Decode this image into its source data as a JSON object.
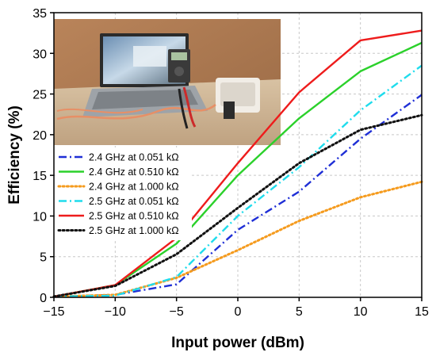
{
  "chart_data": {
    "type": "line",
    "title": "",
    "xlabel": "Input power (dBm)",
    "ylabel": "Efficiency (%)",
    "xlim": [
      -15,
      15
    ],
    "ylim": [
      0,
      35
    ],
    "xticks": [
      "−15",
      "−10",
      "−5",
      "0",
      "5",
      "10",
      "15"
    ],
    "xtick_values": [
      -15,
      -10,
      -5,
      0,
      5,
      10,
      15
    ],
    "yticks": [
      "0",
      "5",
      "10",
      "15",
      "20",
      "25",
      "30",
      "35"
    ],
    "ytick_values": [
      0,
      5,
      10,
      15,
      20,
      25,
      30,
      35
    ],
    "grid": "dashed",
    "legend_position": "left-middle",
    "inset_photo": "measurement setup: laptop, multimeter and rectifier board",
    "x": [
      -15,
      -10,
      -5,
      0,
      5,
      10,
      15
    ],
    "series": [
      {
        "name": "2.4 GHz at 0.051 kΩ",
        "color": "#1f2fd6",
        "style": "dashdot",
        "values": [
          0.1,
          0.3,
          1.6,
          8.3,
          13.0,
          19.5,
          24.9
        ]
      },
      {
        "name": "2.4 GHz at 0.510 kΩ",
        "color": "#2bd12b",
        "style": "solid",
        "values": [
          0.1,
          1.5,
          6.6,
          15.0,
          22.0,
          27.8,
          31.3
        ]
      },
      {
        "name": "2.4 GHz at 1.000 kΩ",
        "color": "#f59b1e",
        "style": "dotted",
        "values": [
          0.1,
          0.3,
          2.4,
          5.8,
          9.4,
          12.3,
          14.2
        ]
      },
      {
        "name": "2.5 GHz at 0.051 kΩ",
        "color": "#1fdcec",
        "style": "dashdot",
        "values": [
          0.1,
          0.2,
          2.5,
          10.0,
          16.0,
          23.0,
          28.5
        ]
      },
      {
        "name": "2.5 GHz at 0.510 kΩ",
        "color": "#ee1c1c",
        "style": "solid",
        "values": [
          0.1,
          1.5,
          7.3,
          16.5,
          25.2,
          31.6,
          32.8
        ]
      },
      {
        "name": "2.5 GHz at 1.000 kΩ",
        "color": "#111111",
        "style": "dotted",
        "values": [
          0.1,
          1.4,
          5.3,
          11.0,
          16.5,
          20.6,
          22.4
        ]
      }
    ]
  }
}
